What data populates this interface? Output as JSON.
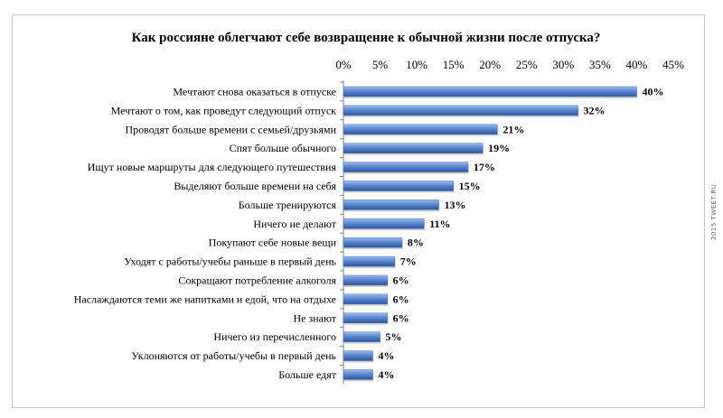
{
  "watermark": "2015 TWEET.RU",
  "chart_data": {
    "type": "bar",
    "orientation": "horizontal",
    "title": "Как россияне облегчают себе возвращение к обычной жизни после отпуска?",
    "xlim": [
      0,
      45
    ],
    "xticks": [
      "0%",
      "5%",
      "10%",
      "15%",
      "20%",
      "25%",
      "30%",
      "35%",
      "40%",
      "45%"
    ],
    "xtick_values": [
      0,
      5,
      10,
      15,
      20,
      25,
      30,
      35,
      40,
      45
    ],
    "xaxis_position": "top",
    "bar_color": "#4a79c4",
    "categories": [
      "Мечтают снова оказаться в отпуске",
      "Мечтают о том, как проведут следующий отпуск",
      "Проводят больше времени с семьей/друзьями",
      "Спят больше обычного",
      "Ищут новые маршруты для следующего путешествия",
      "Выделяют больше времени на себя",
      "Больше тренируются",
      "Ничего не делают",
      "Покупают себе новые вещи",
      "Уходят с работы/учебы раньше в первый день",
      "Сокращают потребление алкоголя",
      "Наслаждаются теми же напитками и едой, что на отдыхе",
      "Не знают",
      "Ничего из перечисленного",
      "Уклоняются от работы/учебы в первый день",
      "Больше едят"
    ],
    "values": [
      40,
      32,
      21,
      19,
      17,
      15,
      13,
      11,
      8,
      7,
      6,
      6,
      6,
      5,
      4,
      4
    ],
    "labels": [
      "40%",
      "32%",
      "21%",
      "19%",
      "17%",
      "15%",
      "13%",
      "11%",
      "8%",
      "7%",
      "6%",
      "6%",
      "6%",
      "5%",
      "4%",
      "4%"
    ]
  }
}
